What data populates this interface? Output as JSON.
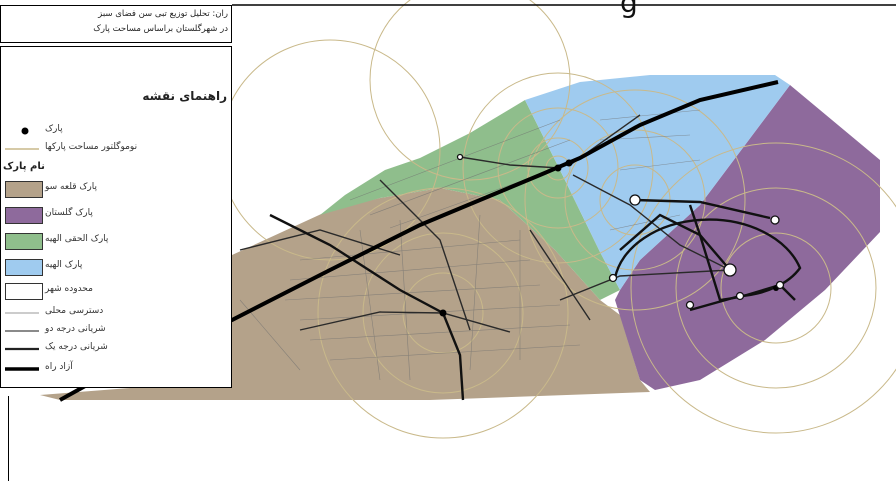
{
  "title_lines": [
    "ران: تحلیل توزیع تبی سن فضای سبز",
    "در شهرگلستان براساس مساحت پارک"
  ],
  "legend": {
    "heading": "راهنمای نقشه",
    "point_items": [
      {
        "label": "پارک"
      },
      {
        "label": "نوموگلتور مساحت پارکها"
      }
    ],
    "group_heading": "نام پارک",
    "park_items": [
      {
        "label": "پارک قلعه سو",
        "color": "#b4a28a"
      },
      {
        "label": "پارک گلستان",
        "color": "#8e6a9c"
      },
      {
        "label": "پارک الحقی الهیه",
        "color": "#8fbe8c"
      },
      {
        "label": "پارک الهیه",
        "color": "#9fcbef"
      }
    ],
    "line_items": [
      {
        "label": "محدوده شهر"
      },
      {
        "label": "دسترسی محلی"
      },
      {
        "label": "شریانی درجه دو"
      },
      {
        "label": "شریانی درجه یک"
      },
      {
        "label": "آزاد راه"
      }
    ]
  },
  "partial_heading_char": "g"
}
